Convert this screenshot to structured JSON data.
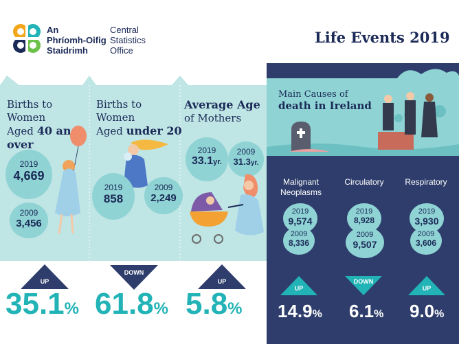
{
  "logo": {
    "line1": "An",
    "line2": "Phríomh-Oifig",
    "line3": "Staidrimh",
    "en1": "Central",
    "en2": "Statistics",
    "en3": "Office"
  },
  "title": "Life Events 2019",
  "panels": [
    {
      "title_line1": "Births to Women",
      "title_line2_pre": "Aged ",
      "title_line2_bold": "40 and",
      "title_line3_bold": "over",
      "y2019_label": "2019",
      "y2019_value": "4,669",
      "y2009_label": "2009",
      "y2009_value": "3,456",
      "direction": "UP",
      "pct": "35.1",
      "sign": "%"
    },
    {
      "title_line1": "Births to Women",
      "title_line2_pre": "Aged ",
      "title_line2_bold": "under 20",
      "y2019_label": "2019",
      "y2019_value": "858",
      "y2009_label": "2009",
      "y2009_value": "2,249",
      "direction": "DOWN",
      "pct": "61.8",
      "sign": "%"
    },
    {
      "title_line1_bold": "Average Age",
      "title_line2": "of Mothers",
      "y2019_label": "2019",
      "y2019_value": "33.1",
      "y2019_unit": "yr.",
      "y2009_label": "2009",
      "y2009_value": "31.3",
      "y2009_unit": "yr.",
      "direction": "UP",
      "pct": "5.8",
      "sign": "%"
    }
  ],
  "death": {
    "heading_line1": "Main Causes of",
    "heading_line2": "death in Ireland",
    "causes": [
      {
        "name_line1": "Malignant",
        "name_line2": "Neoplasms",
        "y2019_label": "2019",
        "y2019_value": "9,574",
        "y2009_label": "2009",
        "y2009_value": "8,336",
        "direction": "UP",
        "pct": "14.9",
        "sign": "%"
      },
      {
        "name_line1": "Circulatory",
        "y2019_label": "2019",
        "y2019_value": "8,928",
        "y2009_label": "2009",
        "y2009_value": "9,507",
        "direction": "DOWN",
        "pct": "6.1",
        "sign": "%"
      },
      {
        "name_line1": "Respiratory",
        "y2019_label": "2019",
        "y2019_value": "3,930",
        "y2009_label": "2009",
        "y2009_value": "3,606",
        "direction": "UP",
        "pct": "9.0",
        "sign": "%"
      }
    ]
  },
  "colors": {
    "navy": "#2e3d6b",
    "teal": "#21b3b5",
    "light_teal": "#bfe5e5",
    "bubble": "#8fd3d4",
    "text_dark": "#1b2a57"
  }
}
